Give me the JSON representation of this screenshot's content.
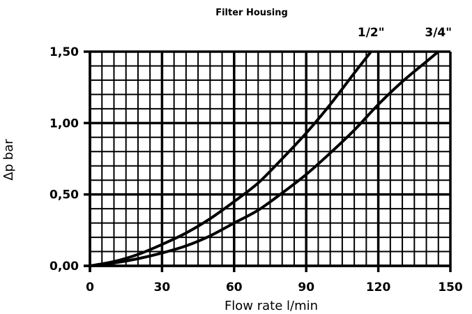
{
  "chart_data": {
    "type": "line",
    "title": "Filter Housing",
    "xlabel": "Flow rate l/min",
    "ylabel": "Δp bar",
    "xlim": [
      0,
      150
    ],
    "ylim": [
      0,
      1.5
    ],
    "x_ticks": [
      0,
      30,
      60,
      90,
      120,
      150
    ],
    "x_tick_labels": [
      "0",
      "30",
      "60",
      "90",
      "120",
      "150"
    ],
    "y_ticks": [
      0,
      0.5,
      1.0,
      1.5
    ],
    "y_tick_labels": [
      "0,00",
      "0,50",
      "1,00",
      "1,50"
    ],
    "grid": true,
    "x_minor_step": 5,
    "y_minor_step": 0.1,
    "series": [
      {
        "name": "1/2\"",
        "x": [
          0,
          10,
          20,
          30,
          40,
          50,
          60,
          70,
          80,
          90,
          100,
          110,
          117
        ],
        "values": [
          0,
          0.03,
          0.08,
          0.15,
          0.23,
          0.33,
          0.45,
          0.58,
          0.75,
          0.93,
          1.13,
          1.35,
          1.5
        ]
      },
      {
        "name": "3/4\"",
        "x": [
          0,
          10,
          20,
          30,
          40,
          50,
          60,
          70,
          80,
          90,
          100,
          110,
          120,
          130,
          140,
          145
        ],
        "values": [
          0,
          0.02,
          0.05,
          0.09,
          0.14,
          0.21,
          0.3,
          0.39,
          0.51,
          0.64,
          0.79,
          0.95,
          1.13,
          1.29,
          1.43,
          1.5
        ]
      }
    ],
    "colors": {
      "line": "#000000",
      "grid": "#000000",
      "background": "#ffffff"
    }
  }
}
